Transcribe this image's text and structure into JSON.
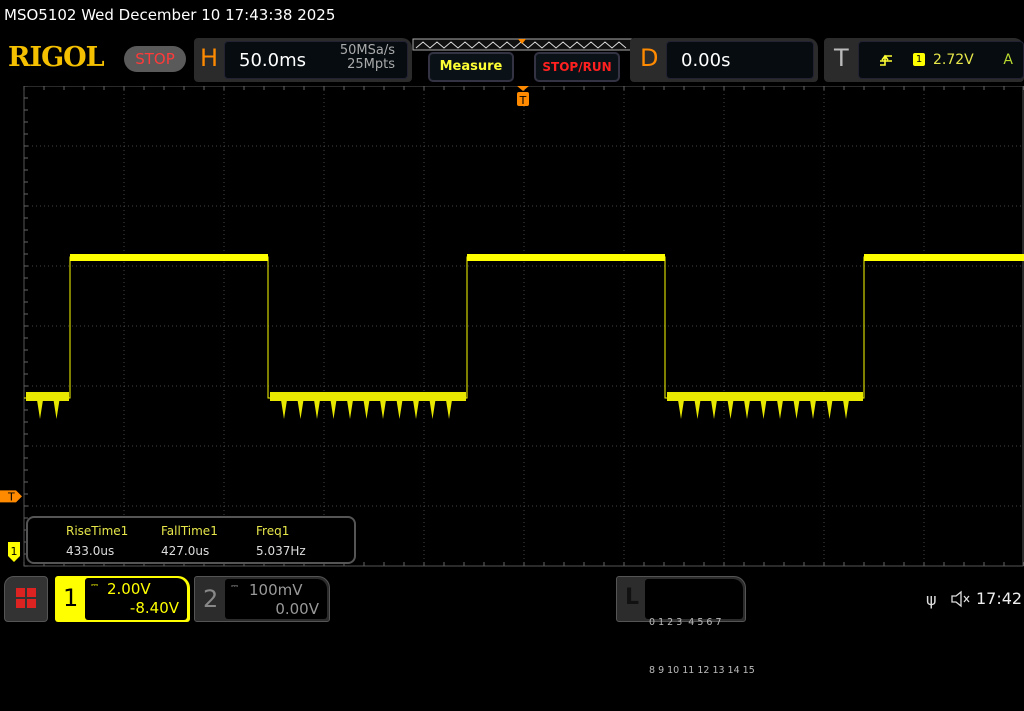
{
  "title": "MSO5102  Wed December 10 17:43:38 2025",
  "logo": "RIGOL",
  "run_state": "STOP",
  "horizontal": {
    "label": "H",
    "timebase": "50.0ms",
    "sample_rate": "50MSa/s",
    "memory_depth": "25Mpts"
  },
  "buttons": {
    "measure": "Measure",
    "stop_run": "STOP/RUN"
  },
  "delay": {
    "label": "D",
    "value": "0.00s"
  },
  "trigger": {
    "label": "T",
    "source": "1",
    "level": "2.72V",
    "mode": "A",
    "marker": "T",
    "slope_icon": "rising-edge-icon"
  },
  "channel_marker": "1",
  "measurements": [
    {
      "name": "RiseTime1",
      "value": "433.0us"
    },
    {
      "name": "FallTime1",
      "value": "427.0us"
    },
    {
      "name": "Freq1",
      "value": "5.037Hz"
    }
  ],
  "channels": [
    {
      "num": "1",
      "scale": "2.00V",
      "offset": "-8.40V",
      "color": "#ffff00",
      "active": true
    },
    {
      "num": "2",
      "scale": "100mV",
      "offset": "0.00V",
      "active": false
    }
  ],
  "logic": {
    "label": "L",
    "row1": "0 1 2 3  4 5 6 7",
    "row2": "8 9 10 11 12 13 14 15"
  },
  "status": {
    "clock": "17:42",
    "icons": [
      "usb-icon",
      "mute-icon"
    ]
  },
  "colors": {
    "accent": "#ff8a00",
    "trace": "#ffff00",
    "grid": "#444444"
  },
  "waveform": {
    "time_per_div_ms": 50,
    "volts_per_div": 2.0,
    "offset_V": -8.4,
    "high_V": 10.7,
    "low_V": 6.0,
    "rising_edges_ms": [
      -227,
      -28.5,
      170
    ],
    "falling_edges_ms": [
      -128,
      70.5
    ],
    "ripple_dip_V": 0.7
  }
}
